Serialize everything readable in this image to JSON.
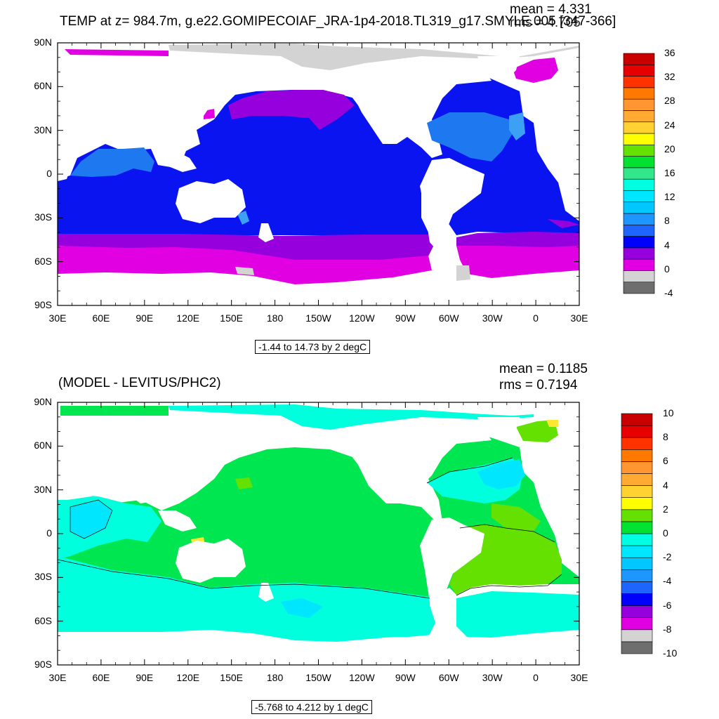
{
  "panels": [
    {
      "title": "TEMP at z= 984.7m, g.e22.GOMIPECOIAF_JRA-1p4-2018.TL319_g17.SMYLE.005 [347-366]",
      "mean_text": "mean = 4.331",
      "rms_text": "rms = 4.705",
      "range_text": "-1.44 to 14.73 by 2 degC",
      "lat_labels": [
        "90N",
        "60N",
        "30N",
        "0",
        "30S",
        "60S",
        "90S"
      ],
      "lon_labels": [
        "30E",
        "60E",
        "90E",
        "120E",
        "150E",
        "180",
        "150W",
        "120W",
        "90W",
        "60W",
        "30W",
        "0",
        "30E"
      ],
      "colorbar_labels": [
        "36",
        "32",
        "28",
        "24",
        "20",
        "16",
        "12",
        "8",
        "4",
        "0",
        "-4"
      ],
      "colorbar_colors": [
        "#6e6e6e",
        "#d3d3d3",
        "#e100e1",
        "#9600dc",
        "#0000ff",
        "#1e64ff",
        "#1e96ff",
        "#00c8ff",
        "#00e6ff",
        "#00ffe1",
        "#32e68c",
        "#00e132",
        "#64e100",
        "#ffff00",
        "#ffd232",
        "#ffaa32",
        "#ff9632",
        "#ff7800",
        "#ff3200",
        "#e60000",
        "#c80000"
      ],
      "map_palette": {
        "ocean": "#0a14f0",
        "warm": "#1e78f0",
        "warm2": "#3ca0f5",
        "cold": "#9600dc",
        "colder": "#e100e1",
        "ice": "#d3d3d3"
      }
    },
    {
      "title": "(MODEL - LEVITUS/PHC2)",
      "mean_text": "mean = 0.1185",
      "rms_text": "rms = 0.7194",
      "range_text": "-5.768 to 4.212 by 1 degC",
      "lat_labels": [
        "90N",
        "60N",
        "30N",
        "0",
        "30S",
        "60S",
        "90S"
      ],
      "lon_labels": [
        "30E",
        "60E",
        "90E",
        "120E",
        "150E",
        "180",
        "150W",
        "120W",
        "90W",
        "60W",
        "30W",
        "0",
        "30E"
      ],
      "colorbar_labels": [
        "10",
        "8",
        "6",
        "4",
        "2",
        "0",
        "-2",
        "-4",
        "-6",
        "-8",
        "-10"
      ],
      "colorbar_colors": [
        "#6e6e6e",
        "#d3d3d3",
        "#e100e1",
        "#9600dc",
        "#0000ff",
        "#1e64ff",
        "#1e96ff",
        "#00c8ff",
        "#00e6ff",
        "#00ffe1",
        "#00e132",
        "#64e100",
        "#ffff00",
        "#ffd232",
        "#ffaa32",
        "#ff9632",
        "#ff7800",
        "#ff3200",
        "#e60000",
        "#c80000"
      ],
      "map_palette": {
        "ocean": "#00e650",
        "warm": "#64e100",
        "cool": "#00ffdc",
        "cool2": "#00e6ff",
        "yellow": "#ffe632"
      }
    }
  ]
}
